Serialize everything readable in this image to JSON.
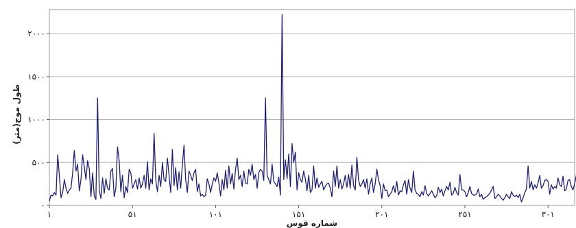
{
  "chart_data": {
    "type": "line",
    "xlabel": "شماره قوس",
    "ylabel": "طول موج(متر)",
    "x_ticks": [
      {
        "value": 1,
        "label": "۱"
      },
      {
        "value": 51,
        "label": "۵۱"
      },
      {
        "value": 101,
        "label": "۱۰۱"
      },
      {
        "value": 151,
        "label": "۱۵۱"
      },
      {
        "value": 201,
        "label": "۲۰۱"
      },
      {
        "value": 251,
        "label": "۲۵۱"
      },
      {
        "value": 301,
        "label": "۳۰۱"
      }
    ],
    "y_ticks": [
      {
        "value": 0,
        "label": "۰"
      },
      {
        "value": 500,
        "label": "۵۰۰"
      },
      {
        "value": 1000,
        "label": "۱۰۰۰"
      },
      {
        "value": 1500,
        "label": "۱۵۰۰"
      },
      {
        "value": 2000,
        "label": "۲۰۰۰"
      }
    ],
    "xlim": [
      1,
      317
    ],
    "ylim": [
      0,
      2280
    ],
    "grid": "horizontal",
    "line_color": "#1f1f7a",
    "series": [
      {
        "values": [
          50,
          120,
          110,
          150,
          120,
          590,
          350,
          90,
          150,
          300,
          200,
          140,
          180,
          200,
          380,
          640,
          400,
          480,
          170,
          300,
          590,
          450,
          300,
          520,
          430,
          100,
          380,
          110,
          70,
          1250,
          180,
          80,
          320,
          140,
          310,
          200,
          180,
          400,
          430,
          100,
          200,
          680,
          520,
          160,
          350,
          90,
          220,
          150,
          420,
          380,
          200,
          250,
          300,
          190,
          320,
          200,
          250,
          350,
          200,
          510,
          180,
          310,
          250,
          840,
          300,
          160,
          350,
          220,
          500,
          300,
          280,
          550,
          350,
          150,
          650,
          230,
          440,
          180,
          390,
          200,
          470,
          700,
          300,
          150,
          400,
          350,
          290,
          380,
          420,
          160,
          250,
          110,
          130,
          100,
          120,
          310,
          250,
          150,
          250,
          320,
          280,
          380,
          260,
          110,
          300,
          180,
          410,
          200,
          460,
          250,
          370,
          190,
          420,
          550,
          300,
          350,
          220,
          400,
          260,
          250,
          420,
          350,
          480,
          300,
          360,
          200,
          380,
          420,
          400,
          290,
          1250,
          350,
          300,
          250,
          480,
          280,
          250,
          220,
          330,
          120,
          2220,
          300,
          530,
          310,
          600,
          220,
          720,
          500,
          620,
          180,
          380,
          300,
          270,
          400,
          310,
          170,
          350,
          150,
          180,
          460,
          200,
          320,
          210,
          250,
          280,
          180,
          220,
          250,
          260,
          200,
          100,
          400,
          220,
          460,
          200,
          300,
          190,
          250,
          350,
          210,
          360,
          200,
          470,
          230,
          180,
          560,
          300,
          220,
          250,
          300,
          200,
          310,
          130,
          250,
          320,
          150,
          250,
          420,
          300,
          230,
          80,
          250,
          170,
          180,
          100,
          130,
          160,
          230,
          150,
          280,
          120,
          170,
          160,
          240,
          290,
          130,
          300,
          200,
          150,
          400,
          180,
          140,
          130,
          100,
          160,
          120,
          230,
          140,
          110,
          140,
          170,
          130,
          90,
          110,
          210,
          150,
          190,
          110,
          170,
          220,
          180,
          270,
          120,
          140,
          210,
          150,
          120,
          360,
          180,
          180,
          160,
          100,
          150,
          220,
          140,
          120,
          120,
          130,
          190,
          100,
          130,
          70,
          90,
          100,
          120,
          140,
          180,
          220,
          80,
          100,
          130,
          110,
          80,
          60,
          90,
          130,
          100,
          80,
          160,
          120,
          100,
          120,
          90,
          130,
          40,
          90,
          150,
          190,
          460,
          200,
          280,
          180,
          240,
          200,
          260,
          350,
          200,
          230,
          290,
          300,
          280,
          130,
          240,
          190,
          220,
          200,
          320,
          240,
          220,
          340,
          170,
          190,
          290,
          300,
          220,
          180,
          250,
          350,
          190,
          270,
          200,
          330,
          270,
          140,
          250,
          360,
          180
        ]
      }
    ]
  }
}
